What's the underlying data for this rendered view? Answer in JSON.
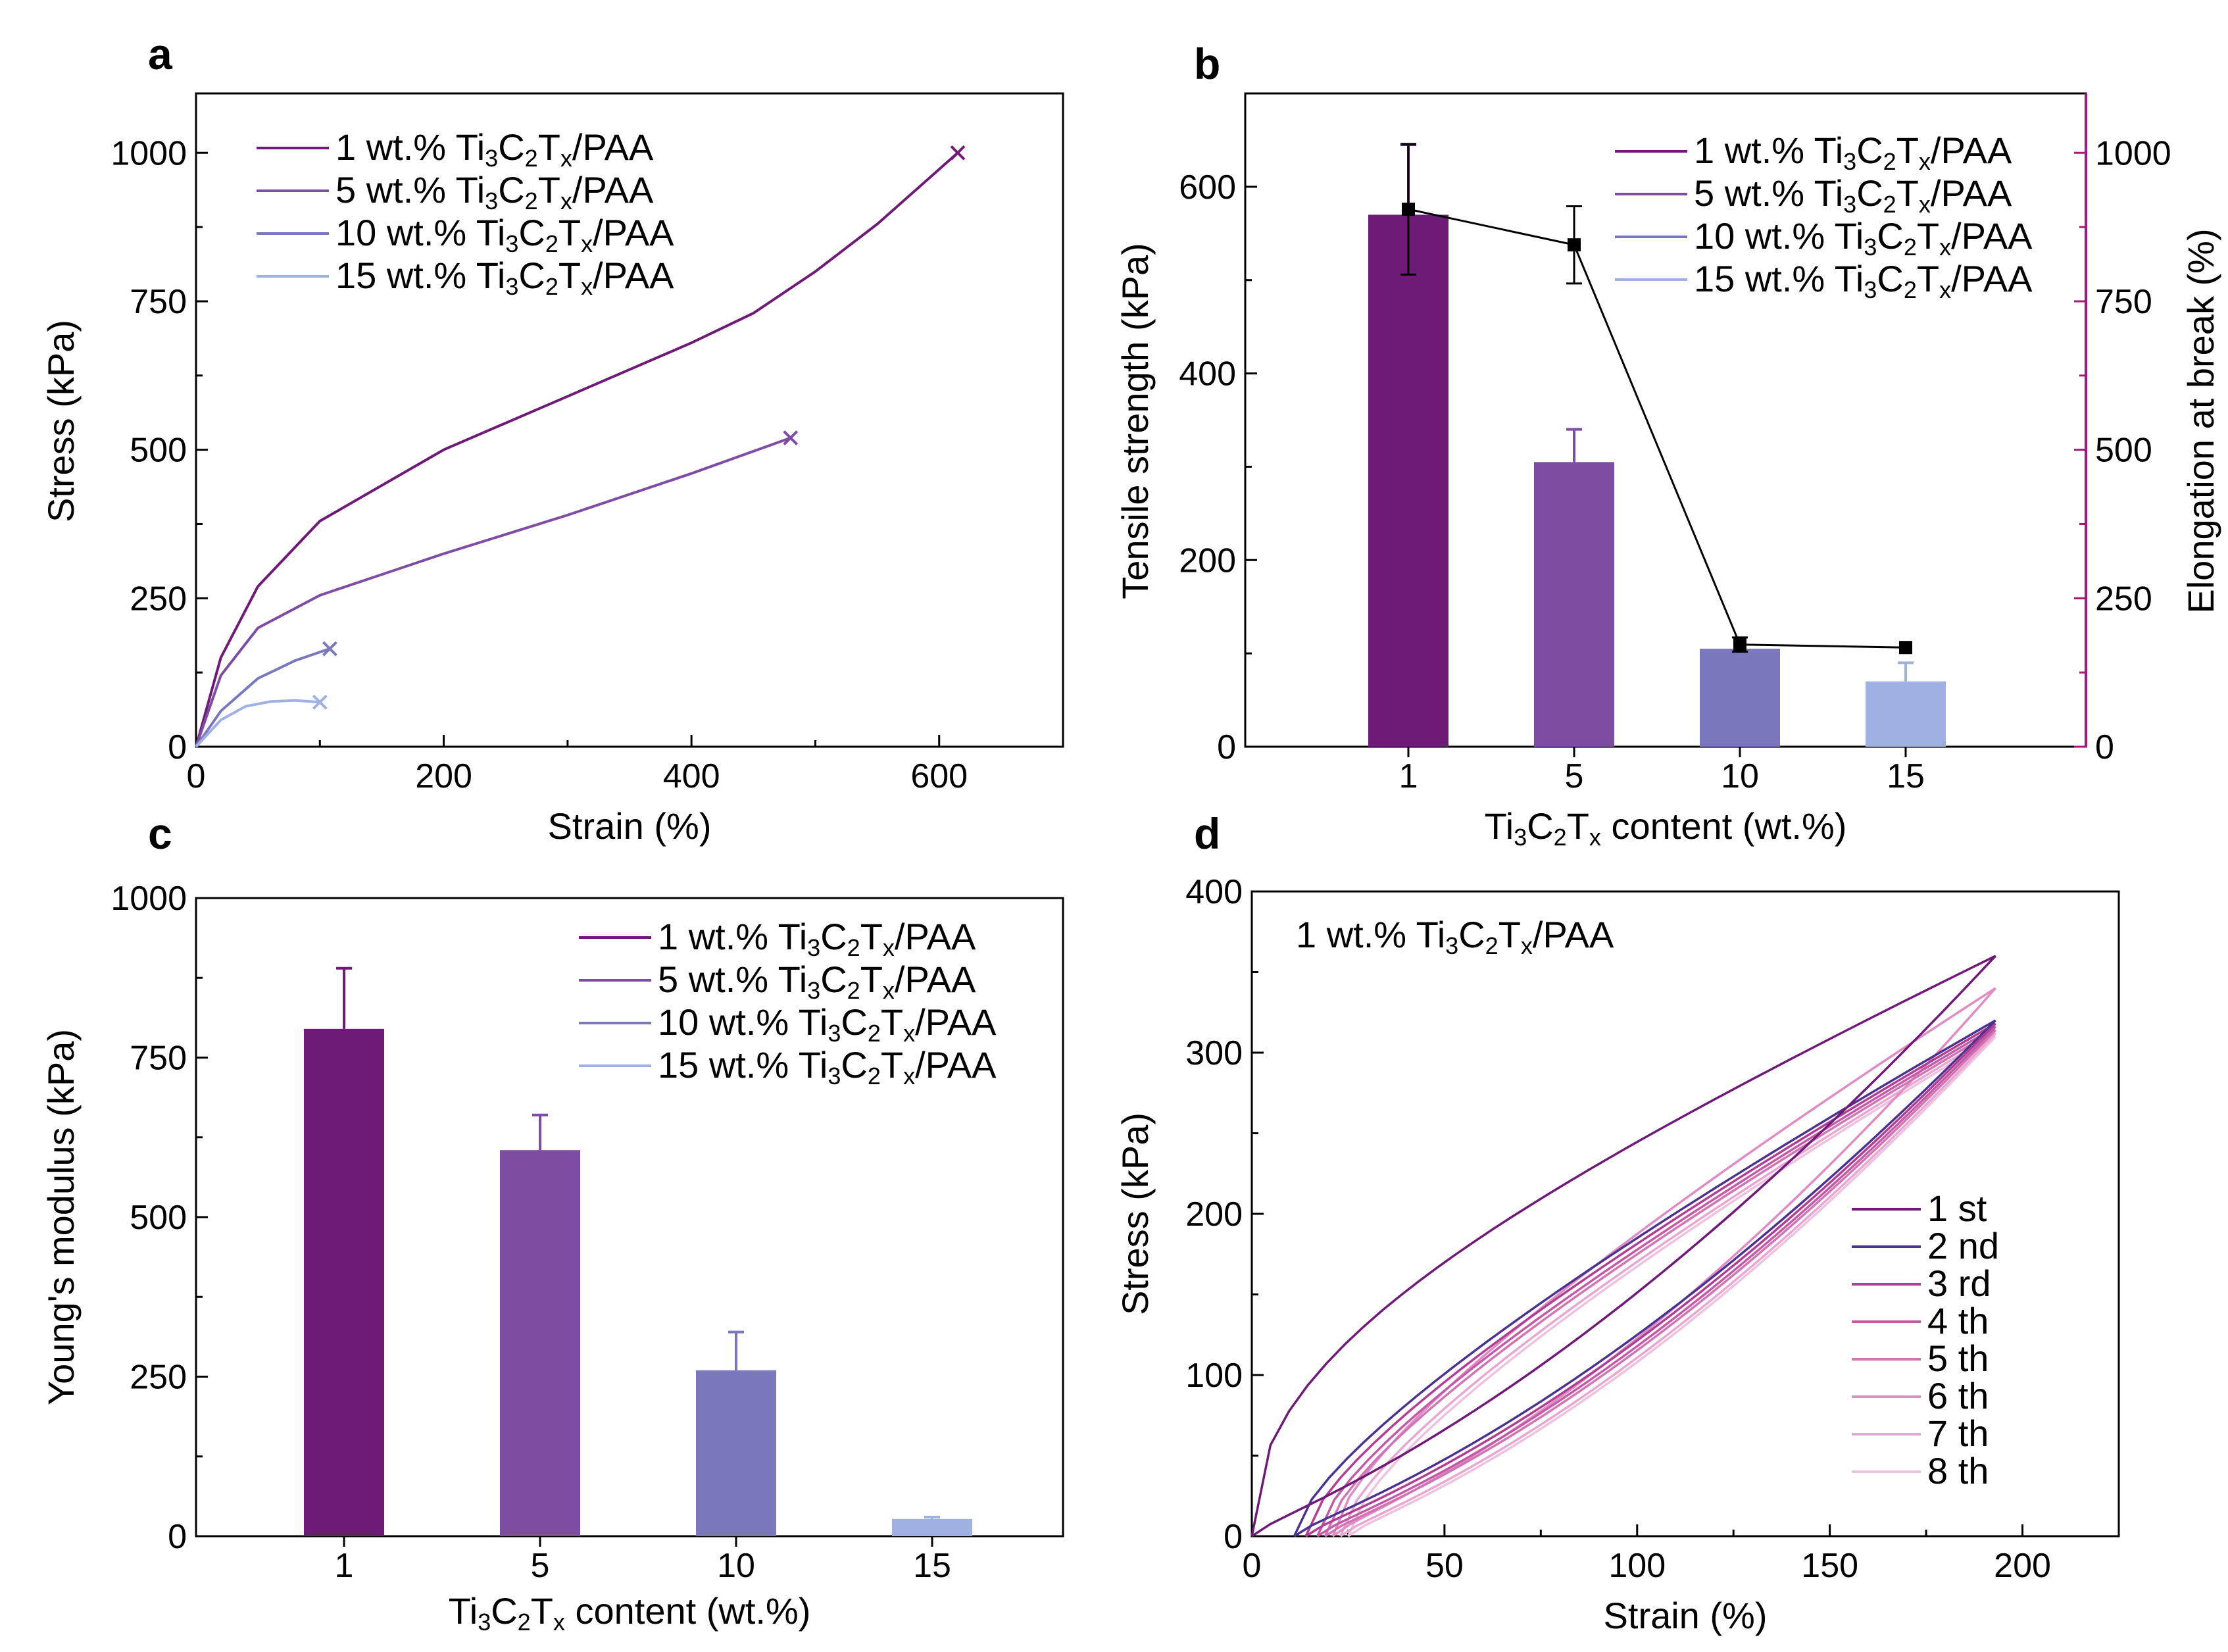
{
  "figure_colors": {
    "c1": "#6e1a76",
    "c5": "#7e4da3",
    "c10": "#7a77bd",
    "c15": "#9fb0e3",
    "right_axis": "#a4187e",
    "marker": "#000000"
  },
  "chart_data": [
    {
      "panel": "a",
      "type": "line",
      "xlabel": "Strain (%)",
      "ylabel": "Stress (kPa)",
      "xlim": [
        0,
        700
      ],
      "ylim": [
        0,
        1100
      ],
      "xticks": [
        0,
        200,
        400,
        600
      ],
      "yticks": [
        0,
        250,
        500,
        750,
        1000
      ],
      "legend_position": "top-left",
      "series": [
        {
          "name": "1 wt.% Ti3C2Tx/PAA",
          "color": "#6e1a76",
          "x": [
            0,
            20,
            50,
            100,
            200,
            300,
            400,
            450,
            500,
            550,
            615
          ],
          "y": [
            0,
            150,
            270,
            380,
            500,
            590,
            680,
            730,
            800,
            880,
            1000
          ]
        },
        {
          "name": "5 wt.% Ti3C2Tx/PAA",
          "color": "#7e4da3",
          "x": [
            0,
            20,
            50,
            100,
            200,
            300,
            400,
            480
          ],
          "y": [
            0,
            120,
            200,
            255,
            325,
            390,
            460,
            520
          ]
        },
        {
          "name": "10 wt.% Ti3C2Tx/PAA",
          "color": "#7a77bd",
          "x": [
            0,
            20,
            50,
            80,
            108
          ],
          "y": [
            0,
            60,
            115,
            145,
            165
          ]
        },
        {
          "name": "15 wt.% Ti3C2Tx/PAA",
          "color": "#9fb0e3",
          "x": [
            0,
            20,
            40,
            60,
            80,
            100
          ],
          "y": [
            0,
            45,
            68,
            76,
            78,
            75
          ]
        }
      ]
    },
    {
      "panel": "b",
      "type": "bar",
      "xlabel": "Ti3C2Tx content (wt.%)",
      "ylabel": "Tensile strength (kPa)",
      "y2label": "Elongation at break (%)",
      "categories": [
        "1",
        "5",
        "10",
        "15"
      ],
      "ylim": [
        0,
        700
      ],
      "y2lim": [
        0,
        1100
      ],
      "yticks": [
        0,
        200,
        400,
        600
      ],
      "y2ticks": [
        0,
        250,
        500,
        750,
        1000
      ],
      "legend_position": "top-right",
      "series": [
        {
          "name": "Tensile strength",
          "values": [
            570,
            305,
            105,
            70
          ],
          "errors": [
            75,
            35,
            0,
            20
          ]
        },
        {
          "name": "Elongation at break",
          "axis": "right",
          "values": [
            905,
            845,
            172,
            167
          ],
          "errors": [
            110,
            65,
            12,
            0
          ]
        }
      ],
      "legend": [
        "1 wt.% Ti3C2Tx/PAA",
        "5 wt.% Ti3C2Tx/PAA",
        "10 wt.% Ti3C2Tx/PAA",
        "15 wt.% Ti3C2Tx/PAA"
      ]
    },
    {
      "panel": "c",
      "type": "bar",
      "xlabel": "Ti3C2Tx content (wt.%)",
      "ylabel": "Young's modulus (kPa)",
      "categories": [
        "1",
        "5",
        "10",
        "15"
      ],
      "ylim": [
        0,
        1000
      ],
      "yticks": [
        0,
        250,
        500,
        750,
        1000
      ],
      "values": [
        795,
        605,
        260,
        27
      ],
      "errors": [
        95,
        55,
        60,
        3
      ],
      "legend_position": "top-right",
      "legend": [
        "1 wt.% Ti3C2Tx/PAA",
        "5 wt.% Ti3C2Tx/PAA",
        "10 wt.% Ti3C2Tx/PAA",
        "15 wt.% Ti3C2Tx/PAA"
      ]
    },
    {
      "panel": "d",
      "type": "line",
      "annotation": "1 wt.% Ti3C2Tx/PAA",
      "xlabel": "Strain (%)",
      "ylabel": "Stress (kPa)",
      "xlim": [
        0,
        225
      ],
      "ylim": [
        0,
        400
      ],
      "xticks": [
        0,
        50,
        100,
        150,
        200
      ],
      "yticks": [
        0,
        100,
        200,
        300,
        400
      ],
      "legend_position": "bottom-right",
      "series": [
        {
          "name": "1 st",
          "color": "#6e1a76",
          "residual": 0,
          "peak": 360
        },
        {
          "name": "2 nd",
          "color": "#4a3290",
          "residual": 11,
          "peak": 320
        },
        {
          "name": "3 rd",
          "color": "#b23d93",
          "residual": 14,
          "peak": 318
        },
        {
          "name": "4 th",
          "color": "#c45aa6",
          "residual": 17,
          "peak": 316
        },
        {
          "name": "5 th",
          "color": "#d273b5",
          "residual": 19,
          "peak": 314
        },
        {
          "name": "6 th",
          "color": "#df8cc4",
          "residual": 21,
          "peak": 340
        },
        {
          "name": "7 th",
          "color": "#e8a6d2",
          "residual": 23,
          "peak": 312
        },
        {
          "name": "8 th",
          "color": "#f0c0df",
          "residual": 25,
          "peak": 310
        }
      ],
      "max_strain": 193
    }
  ]
}
